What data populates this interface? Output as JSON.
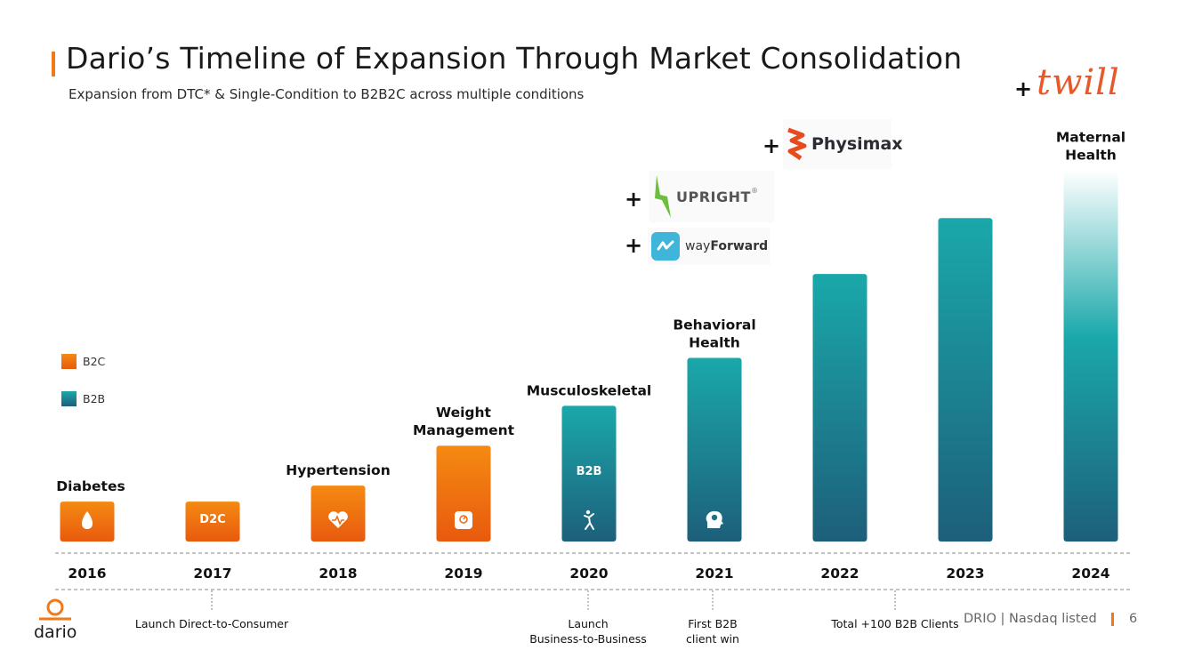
{
  "header": {
    "title": "Dario’s Timeline of Expansion Through Market Consolidation",
    "subtitle": "Expansion from DTC* & Single-Condition to B2B2C across multiple conditions"
  },
  "legend": [
    {
      "label": "B2C",
      "color": "#ee6a0e"
    },
    {
      "label": "B2B",
      "color": "#1f7f8e"
    }
  ],
  "colors": {
    "b2c_top": "#f58a12",
    "b2c_bottom": "#e85a0e",
    "b2b_top": "#1aa8aa",
    "b2b_bottom": "#1d5f7a",
    "accent": "#f07a1a"
  },
  "chart_data": {
    "type": "bar",
    "categories": [
      "2016",
      "2017",
      "2018",
      "2019",
      "2020",
      "2021",
      "2022",
      "2023",
      "2024"
    ],
    "values": [
      1,
      1,
      1.4,
      2.4,
      3.4,
      4.6,
      6.7,
      8.1,
      9.3
    ],
    "segment": [
      "B2C",
      "B2C",
      "B2C",
      "B2C",
      "B2B",
      "B2B",
      "B2B",
      "B2B",
      "B2B"
    ],
    "bar_labels": [
      "Diabetes",
      "",
      "Hypertension",
      "Weight Management",
      "Musculoskeletal",
      "Behavioral Health",
      "",
      "",
      "Maternal Health"
    ],
    "bar_tags": [
      "",
      "D2C",
      "",
      "",
      "B2B",
      "",
      "",
      "",
      ""
    ],
    "bar_icons": [
      "drop-icon",
      "",
      "heart-pulse-icon",
      "scale-icon",
      "runner-icon",
      "brain-head-icon",
      "",
      "",
      ""
    ],
    "ylim": [
      0,
      10
    ],
    "grid": false,
    "legend_position": "left",
    "milestones": [
      {
        "after_category": "2017",
        "text": "Launch Direct-to-Consumer"
      },
      {
        "after_category": "2020",
        "text": "Launch Business-to-Business"
      },
      {
        "after_category": "2021",
        "text": "First B2B client win"
      },
      {
        "after_category": "2022",
        "text": "Total +100 B2B Clients"
      }
    ]
  },
  "acquisitions": [
    {
      "plus": "+",
      "logo": "wayForward",
      "logo_prefix": "way",
      "logo_bold": "Forward",
      "icon": "wayforward-icon"
    },
    {
      "plus": "+",
      "logo": "UPRIGHT",
      "mark": "®",
      "icon": "upright-bolt-icon"
    },
    {
      "plus": "+",
      "logo": "Physimax",
      "icon": "physimax-icon"
    },
    {
      "plus": "+",
      "logo": "twill",
      "icon": "twill-logo"
    }
  ],
  "footer": {
    "brand": "dario",
    "text": "DRIO | Nasdaq listed",
    "page": "6"
  }
}
